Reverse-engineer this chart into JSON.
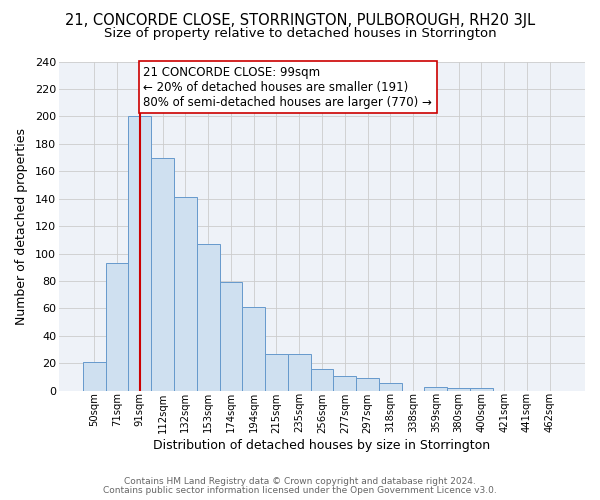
{
  "title": "21, CONCORDE CLOSE, STORRINGTON, PULBOROUGH, RH20 3JL",
  "subtitle": "Size of property relative to detached houses in Storrington",
  "xlabel": "Distribution of detached houses by size in Storrington",
  "ylabel": "Number of detached properties",
  "bar_labels": [
    "50sqm",
    "71sqm",
    "91sqm",
    "112sqm",
    "132sqm",
    "153sqm",
    "174sqm",
    "194sqm",
    "215sqm",
    "235sqm",
    "256sqm",
    "277sqm",
    "297sqm",
    "318sqm",
    "338sqm",
    "359sqm",
    "380sqm",
    "400sqm",
    "421sqm",
    "441sqm",
    "462sqm"
  ],
  "bar_values": [
    21,
    93,
    200,
    170,
    141,
    107,
    79,
    61,
    27,
    27,
    16,
    11,
    9,
    6,
    0,
    3,
    2,
    2,
    0,
    0,
    0
  ],
  "bar_color": "#cfe0f0",
  "bar_edge_color": "#6699cc",
  "vline_x": 2,
  "vline_color": "#cc0000",
  "annotation_line1": "21 CONCORDE CLOSE: 99sqm",
  "annotation_line2": "← 20% of detached houses are smaller (191)",
  "annotation_line3": "80% of semi-detached houses are larger (770) →",
  "annotation_box_color": "#ffffff",
  "annotation_box_edge": "#cc0000",
  "ylim": [
    0,
    240
  ],
  "yticks": [
    0,
    20,
    40,
    60,
    80,
    100,
    120,
    140,
    160,
    180,
    200,
    220,
    240
  ],
  "grid_color": "#cccccc",
  "plot_bg_color": "#eef2f8",
  "fig_bg_color": "#ffffff",
  "footer1": "Contains HM Land Registry data © Crown copyright and database right 2024.",
  "footer2": "Contains public sector information licensed under the Open Government Licence v3.0.",
  "title_fontsize": 10.5,
  "subtitle_fontsize": 9.5,
  "annotation_fontsize": 8.5
}
